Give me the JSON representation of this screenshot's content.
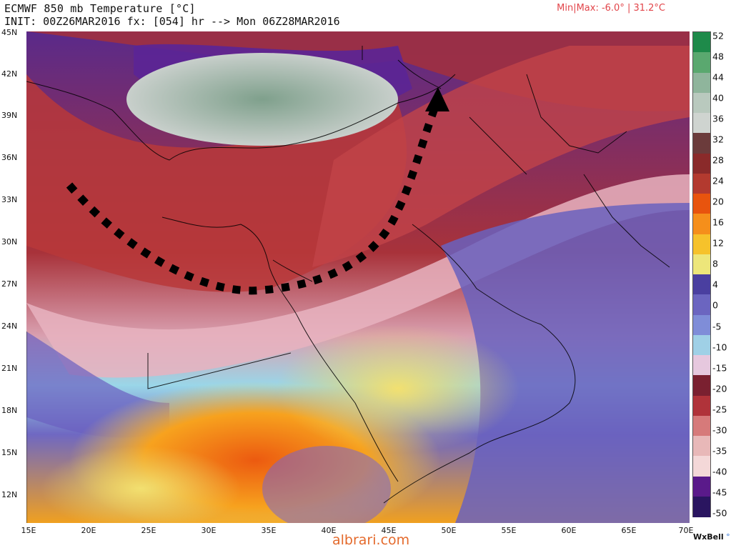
{
  "header": {
    "title": "ECMWF 850 mb Temperature [°C]",
    "init_line": "INIT: 00Z26MAR2016 fx: [054] hr --> Mon 06Z28MAR2016",
    "minmax": "Min|Max: -6.0° | 31.2°C"
  },
  "map": {
    "lat_labels": [
      "45N",
      "42N",
      "39N",
      "36N",
      "33N",
      "30N",
      "27N",
      "24N",
      "21N",
      "18N",
      "15N",
      "12N"
    ],
    "lon_labels": [
      "15E",
      "20E",
      "25E",
      "30E",
      "35E",
      "40E",
      "45E",
      "50E",
      "55E",
      "60E",
      "65E",
      "70E"
    ],
    "arrow_color": "#000000"
  },
  "colorbar": {
    "labels": [
      "52",
      "48",
      "44",
      "40",
      "36",
      "32",
      "28",
      "24",
      "20",
      "16",
      "12",
      "8",
      "4",
      "0",
      "-5",
      "-10",
      "-15",
      "-20",
      "-25",
      "-30",
      "-35",
      "-40",
      "-45",
      "-50"
    ],
    "colors": [
      "#1e8a4a",
      "#5aa86f",
      "#8fb59c",
      "#b9c9be",
      "#cfd4d0",
      "#6b3b3b",
      "#8a2a2a",
      "#b33a2f",
      "#e8540e",
      "#f58f1b",
      "#f6c22b",
      "#ede67a",
      "#4a3fa0",
      "#6b65c0",
      "#7f8dd8",
      "#9fd0e6",
      "#e6c8de",
      "#7a2030",
      "#b0333a",
      "#d67a7a",
      "#e8b8b8",
      "#f4d8d8",
      "#5a1a8a",
      "#2a1560"
    ]
  },
  "footer": {
    "brand": "WxBell",
    "brand_dot": "°",
    "watermark": "albrari.com"
  }
}
